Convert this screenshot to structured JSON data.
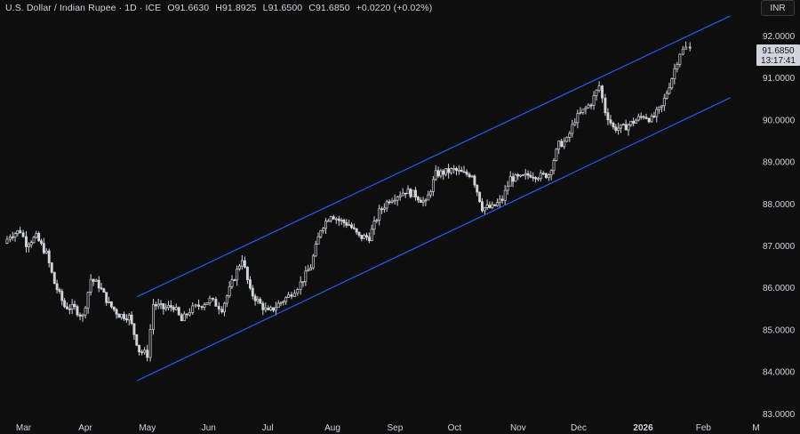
{
  "header": {
    "symbol": "U.S. Dollar / Indian Rupee · 1D · ICE",
    "open": "O91.6630",
    "high": "H91.8925",
    "low": "L91.6500",
    "close": "C91.6850",
    "change": "+0.0220 (+0.02%)"
  },
  "currency_button": "INR",
  "last_price": {
    "value": "91.6850",
    "countdown": "13:17:41"
  },
  "colors": {
    "background": "#0e0e0e",
    "candle": "#d1d4dc",
    "channel": "#2962ff",
    "text": "#d1d4dc"
  },
  "chart_data": {
    "type": "candlestick",
    "title": "U.S. Dollar / Indian Rupee · 1D · ICE",
    "y_ticks": [
      "92.0000",
      "91.0000",
      "90.0000",
      "89.0000",
      "88.0000",
      "87.0000",
      "86.0000",
      "85.0000",
      "84.0000",
      "83.0000"
    ],
    "ylim": [
      83.0,
      92.5
    ],
    "x_ticks": [
      "Mar",
      "Apr",
      "May",
      "Jun",
      "Jul",
      "Aug",
      "Sep",
      "Oct",
      "Nov",
      "Dec",
      "2026",
      "Feb",
      "M"
    ],
    "channel": {
      "upper": [
        {
          "x": "2025-05-01",
          "y": 85.78
        },
        {
          "x": "2026-02-19",
          "y": 92.47
        }
      ],
      "lower": [
        {
          "x": "2025-05-01",
          "y": 83.78
        },
        {
          "x": "2026-02-19",
          "y": 90.52
        }
      ]
    },
    "close_series": [
      {
        "x": "2025-02-24",
        "y": 87.05
      },
      {
        "x": "2025-02-27",
        "y": 87.25
      },
      {
        "x": "2025-03-04",
        "y": 87.35
      },
      {
        "x": "2025-03-07",
        "y": 87.05
      },
      {
        "x": "2025-03-12",
        "y": 87.2
      },
      {
        "x": "2025-03-17",
        "y": 86.8
      },
      {
        "x": "2025-03-21",
        "y": 86.1
      },
      {
        "x": "2025-03-26",
        "y": 85.55
      },
      {
        "x": "2025-03-31",
        "y": 85.5
      },
      {
        "x": "2025-04-04",
        "y": 85.3
      },
      {
        "x": "2025-04-08",
        "y": 86.2
      },
      {
        "x": "2025-04-12",
        "y": 86.05
      },
      {
        "x": "2025-04-17",
        "y": 85.6
      },
      {
        "x": "2025-04-22",
        "y": 85.35
      },
      {
        "x": "2025-04-27",
        "y": 85.3
      },
      {
        "x": "2025-05-02",
        "y": 84.5
      },
      {
        "x": "2025-05-06",
        "y": 84.4
      },
      {
        "x": "2025-05-09",
        "y": 85.6
      },
      {
        "x": "2025-05-14",
        "y": 85.5
      },
      {
        "x": "2025-05-19",
        "y": 85.55
      },
      {
        "x": "2025-05-23",
        "y": 85.2
      },
      {
        "x": "2025-05-27",
        "y": 85.45
      },
      {
        "x": "2025-06-02",
        "y": 85.6
      },
      {
        "x": "2025-06-06",
        "y": 85.7
      },
      {
        "x": "2025-06-12",
        "y": 85.5
      },
      {
        "x": "2025-06-17",
        "y": 86.1
      },
      {
        "x": "2025-06-22",
        "y": 86.7
      },
      {
        "x": "2025-06-26",
        "y": 85.9
      },
      {
        "x": "2025-07-01",
        "y": 85.6
      },
      {
        "x": "2025-07-05",
        "y": 85.4
      },
      {
        "x": "2025-07-10",
        "y": 85.6
      },
      {
        "x": "2025-07-15",
        "y": 85.8
      },
      {
        "x": "2025-07-21",
        "y": 86.1
      },
      {
        "x": "2025-07-26",
        "y": 86.5
      },
      {
        "x": "2025-07-31",
        "y": 87.4
      },
      {
        "x": "2025-08-05",
        "y": 87.75
      },
      {
        "x": "2025-08-09",
        "y": 87.6
      },
      {
        "x": "2025-08-14",
        "y": 87.5
      },
      {
        "x": "2025-08-19",
        "y": 87.2
      },
      {
        "x": "2025-08-24",
        "y": 87.2
      },
      {
        "x": "2025-08-29",
        "y": 87.8
      },
      {
        "x": "2025-09-03",
        "y": 88.1
      },
      {
        "x": "2025-09-07",
        "y": 88.2
      },
      {
        "x": "2025-09-11",
        "y": 88.3
      },
      {
        "x": "2025-09-16",
        "y": 88.2
      },
      {
        "x": "2025-09-21",
        "y": 88.0
      },
      {
        "x": "2025-09-26",
        "y": 88.7
      },
      {
        "x": "2025-10-01",
        "y": 88.75
      },
      {
        "x": "2025-10-05",
        "y": 88.8
      },
      {
        "x": "2025-10-10",
        "y": 88.7
      },
      {
        "x": "2025-10-14",
        "y": 88.7
      },
      {
        "x": "2025-10-19",
        "y": 87.9
      },
      {
        "x": "2025-10-24",
        "y": 87.9
      },
      {
        "x": "2025-10-29",
        "y": 88.1
      },
      {
        "x": "2025-11-02",
        "y": 88.6
      },
      {
        "x": "2025-11-07",
        "y": 88.6
      },
      {
        "x": "2025-11-12",
        "y": 88.7
      },
      {
        "x": "2025-11-17",
        "y": 88.65
      },
      {
        "x": "2025-11-21",
        "y": 88.7
      },
      {
        "x": "2025-11-26",
        "y": 89.4
      },
      {
        "x": "2025-11-30",
        "y": 89.5
      },
      {
        "x": "2025-12-04",
        "y": 90.0
      },
      {
        "x": "2025-12-08",
        "y": 90.2
      },
      {
        "x": "2025-12-12",
        "y": 90.4
      },
      {
        "x": "2025-12-16",
        "y": 90.8
      },
      {
        "x": "2025-12-19",
        "y": 90.2
      },
      {
        "x": "2025-12-23",
        "y": 89.8
      },
      {
        "x": "2025-12-28",
        "y": 89.8
      },
      {
        "x": "2026-01-02",
        "y": 89.95
      },
      {
        "x": "2026-01-07",
        "y": 90.1
      },
      {
        "x": "2026-01-11",
        "y": 90.0
      },
      {
        "x": "2026-01-16",
        "y": 90.3
      },
      {
        "x": "2026-01-21",
        "y": 91.0
      },
      {
        "x": "2026-01-25",
        "y": 91.6
      },
      {
        "x": "2026-01-28",
        "y": 91.7
      },
      {
        "x": "2026-01-30",
        "y": 91.685
      }
    ]
  }
}
